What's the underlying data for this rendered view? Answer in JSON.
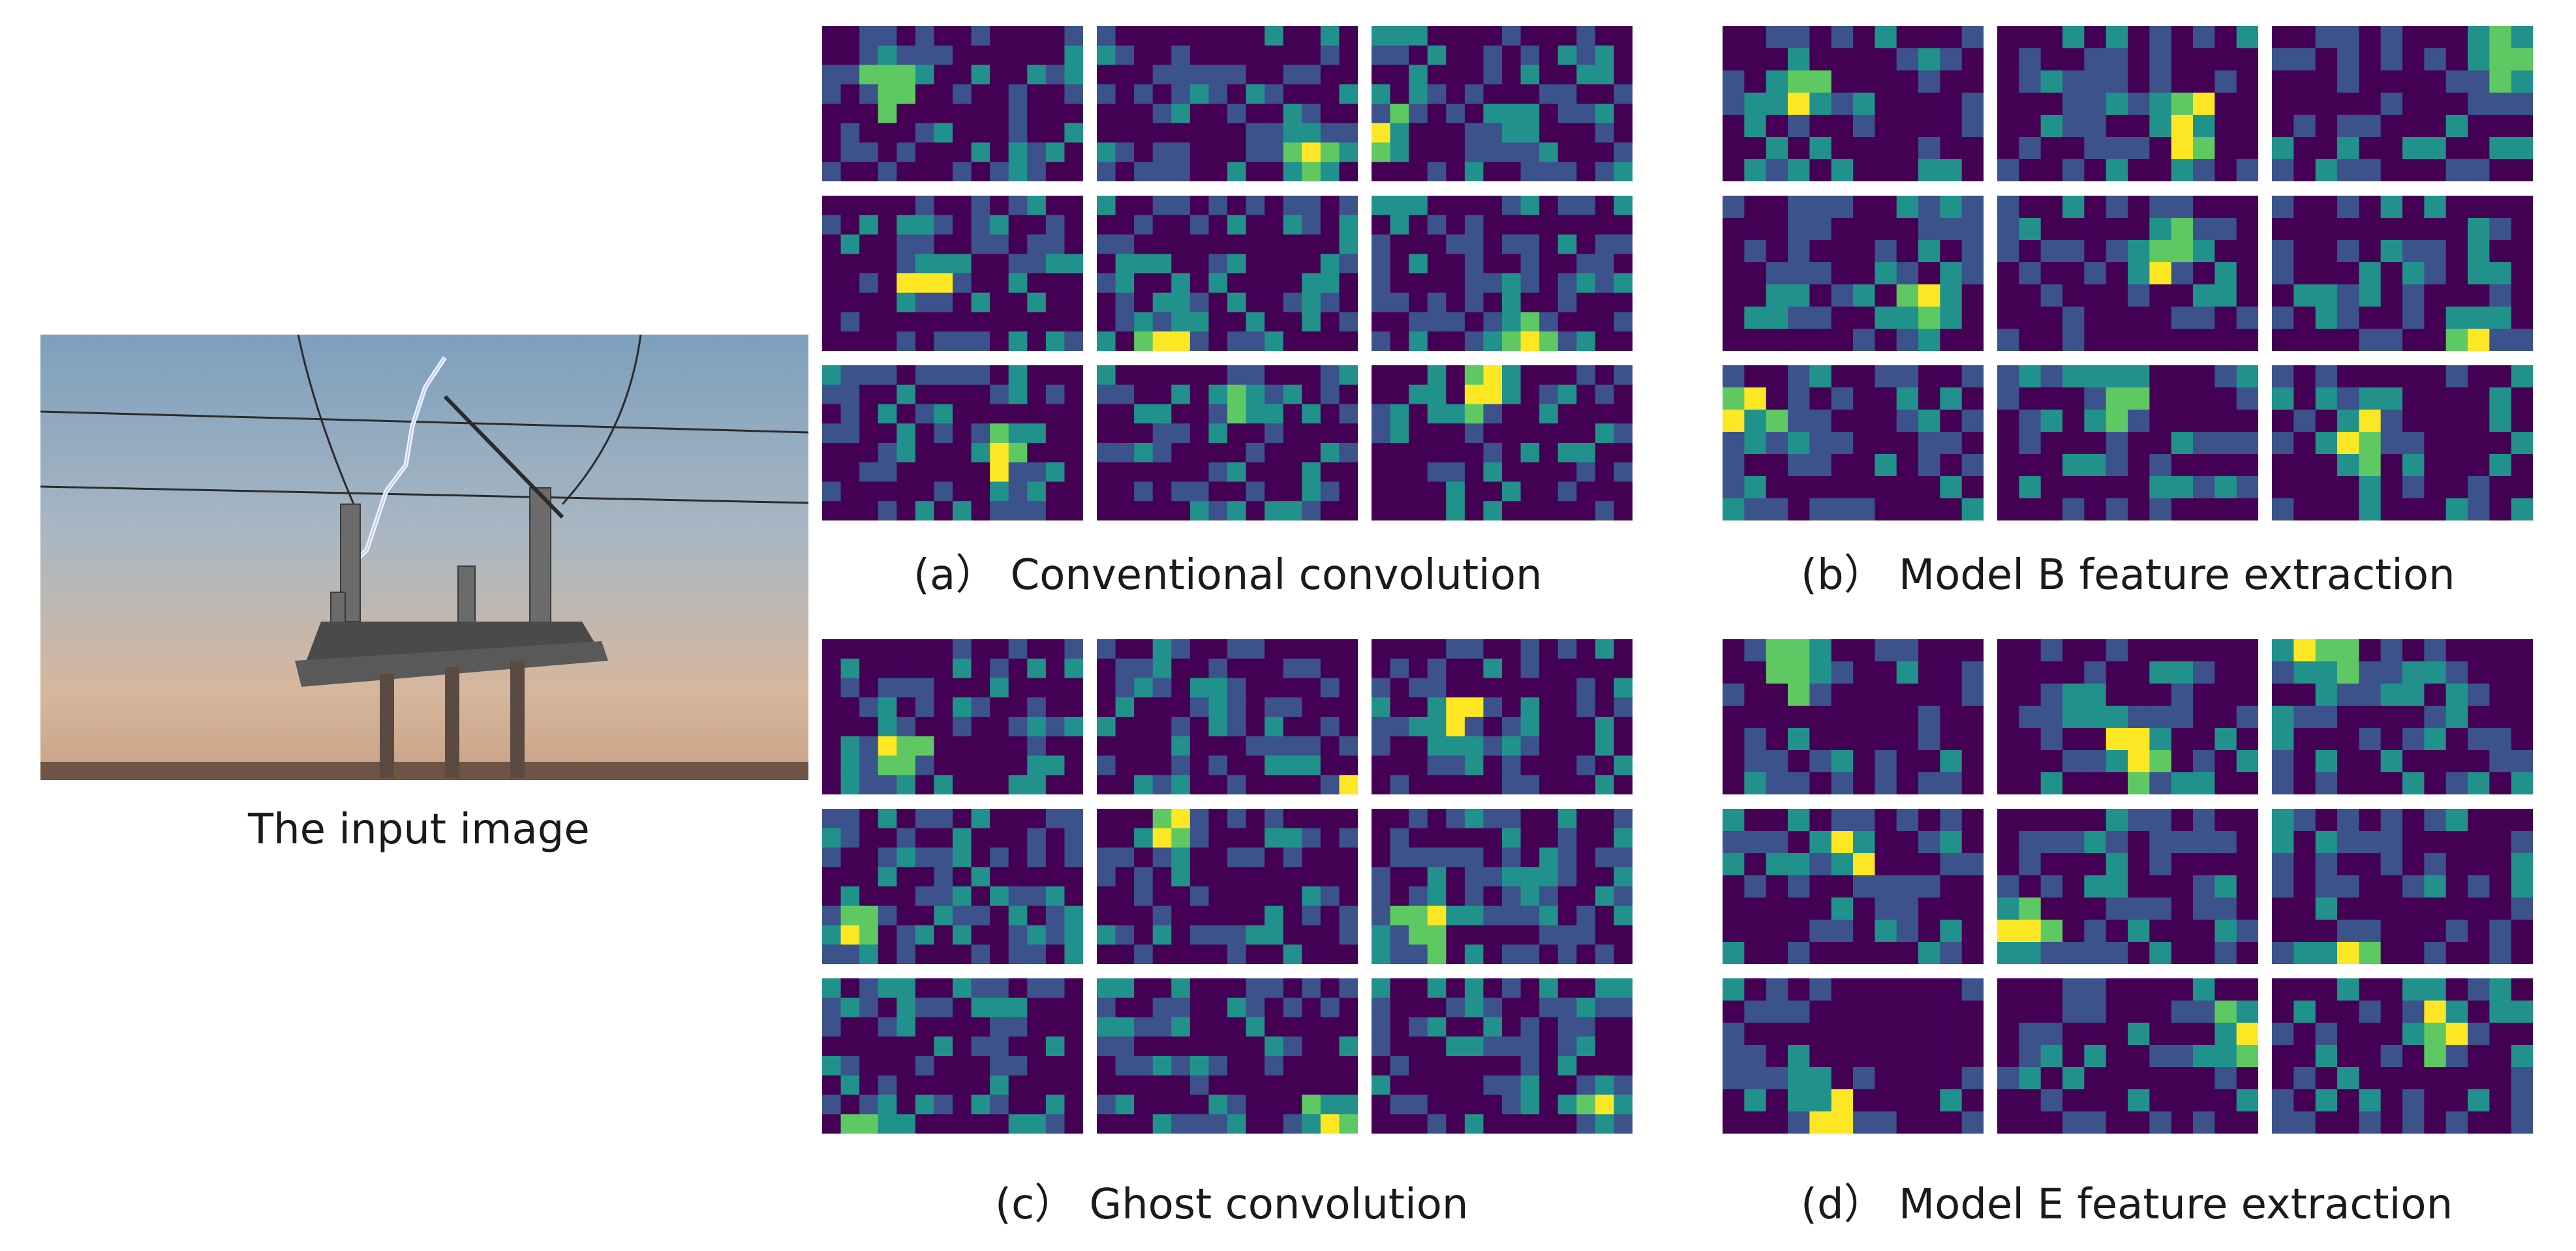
{
  "input_caption": "The input image",
  "panels": [
    {
      "id": "a",
      "caption": "(a） Conventional convolution"
    },
    {
      "id": "b",
      "caption": "(b） Model B feature extraction"
    },
    {
      "id": "c",
      "caption": "(c） Ghost convolution"
    },
    {
      "id": "d",
      "caption": "(d） Model E feature extraction"
    }
  ],
  "colormap": [
    "#440154",
    "#3b528b",
    "#21918c",
    "#5ec962",
    "#fde725"
  ]
}
